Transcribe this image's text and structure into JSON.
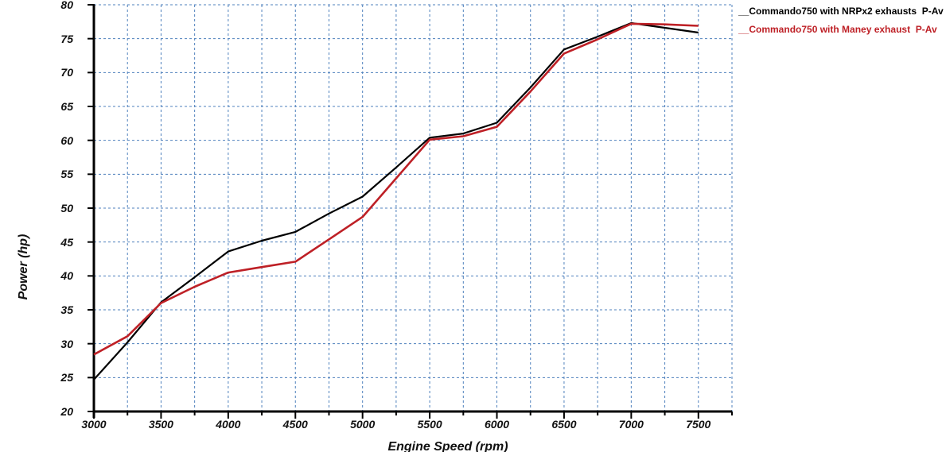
{
  "figure": {
    "background": "#ffffff"
  },
  "chart_data": {
    "type": "line",
    "title": "",
    "xlabel": "Engine Speed (rpm)",
    "ylabel": "Power (hp)",
    "xlim": [
      3000,
      7750
    ],
    "ylim": [
      20,
      80
    ],
    "x_major_ticks": [
      3000,
      3500,
      4000,
      4500,
      5000,
      5500,
      6000,
      6500,
      7000,
      7500
    ],
    "y_major_ticks": [
      20,
      25,
      30,
      35,
      40,
      45,
      50,
      55,
      60,
      65,
      70,
      75,
      80
    ],
    "x_minor_step": 250,
    "y_grid_step": 5,
    "grid": true,
    "grid_color": "#4f81bd",
    "axis_color": "#000000",
    "legend_position": "top-right",
    "x": [
      3000,
      3250,
      3500,
      3750,
      4000,
      4250,
      4500,
      4750,
      5000,
      5250,
      5500,
      5750,
      6000,
      6250,
      6500,
      6750,
      7000,
      7250,
      7500
    ],
    "series": [
      {
        "name": "Commando750 with NRPx2 exhausts P-Av",
        "legend_label": "__Commando750 with NRPx2 exhausts  P-Av",
        "color": "#000000",
        "line_width": 2.2,
        "values": [
          24.7,
          30.2,
          36.1,
          39.8,
          43.6,
          45.2,
          46.5,
          49.2,
          51.7,
          56.0,
          60.4,
          61.0,
          62.6,
          67.8,
          73.4,
          75.3,
          77.3,
          76.6,
          75.9
        ]
      },
      {
        "name": "Commando750 with Maney exhaust P-Av",
        "legend_label": "__Commando750 with Maney exhaust  P-Av",
        "color": "#be2026",
        "line_width": 2.6,
        "values": [
          28.4,
          31.1,
          36.0,
          38.4,
          40.5,
          41.3,
          42.1,
          45.4,
          48.7,
          54.4,
          60.1,
          60.6,
          62.0,
          67.2,
          72.8,
          74.9,
          77.2,
          77.1,
          76.9
        ]
      }
    ]
  }
}
